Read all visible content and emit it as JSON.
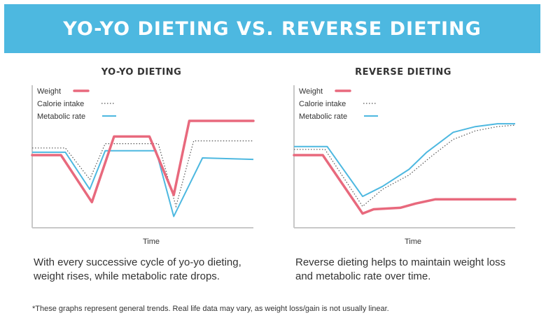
{
  "banner": {
    "title": "YO-YO DIETING VS. REVERSE DIETING",
    "color": "#4db8e0"
  },
  "colors": {
    "weight": "#e8697d",
    "calorie": "#555555",
    "metabolic": "#4db8e0"
  },
  "left": {
    "caption_line1": "With every successive cycle of yo-yo dieting,",
    "caption_line2": "weight rises, while metabolic rate drops."
  },
  "right": {
    "caption_line1": "Reverse dieting helps to maintain weight loss",
    "caption_line2": "and metabolic rate over time."
  },
  "footnote": "*These graphs represent general trends. Real life data may vary, as weight loss/gain is not usually linear.",
  "chart_data": [
    {
      "type": "line",
      "title": "YO-YO DIETING",
      "xlabel": "Time",
      "ylabel": "",
      "ylim": [
        0,
        100
      ],
      "xlim": [
        0,
        100
      ],
      "legend_position": "top-left",
      "series": [
        {
          "name": "Weight",
          "style": "thick",
          "points": [
            [
              0,
              51
            ],
            [
              13,
              51
            ],
            [
              27,
              18
            ],
            [
              37,
              64
            ],
            [
              53,
              64
            ],
            [
              64,
              23
            ],
            [
              71,
              75
            ],
            [
              100,
              75
            ]
          ]
        },
        {
          "name": "Calorie intake",
          "style": "dotted",
          "points": [
            [
              0,
              56
            ],
            [
              15,
              56
            ],
            [
              26,
              34
            ],
            [
              33,
              59
            ],
            [
              57,
              59
            ],
            [
              65,
              15
            ],
            [
              73,
              61
            ],
            [
              100,
              61
            ]
          ]
        },
        {
          "name": "Metabolic rate",
          "style": "line",
          "points": [
            [
              0,
              53
            ],
            [
              15,
              53
            ],
            [
              26,
              27
            ],
            [
              33,
              54
            ],
            [
              56,
              54
            ],
            [
              64,
              8
            ],
            [
              77,
              49
            ],
            [
              100,
              48
            ]
          ]
        }
      ]
    },
    {
      "type": "line",
      "title": "REVERSE DIETING",
      "xlabel": "Time",
      "ylabel": "",
      "ylim": [
        0,
        100
      ],
      "xlim": [
        0,
        100
      ],
      "legend_position": "top-left",
      "series": [
        {
          "name": "Weight",
          "style": "thick",
          "points": [
            [
              0,
              51
            ],
            [
              13,
              51
            ],
            [
              31,
              10
            ],
            [
              36,
              13
            ],
            [
              48,
              14
            ],
            [
              55,
              17
            ],
            [
              64,
              20
            ],
            [
              80,
              20
            ],
            [
              100,
              20
            ]
          ]
        },
        {
          "name": "Calorie intake",
          "style": "dotted",
          "points": [
            [
              0,
              55
            ],
            [
              14,
              55
            ],
            [
              31,
              15
            ],
            [
              40,
              27
            ],
            [
              52,
              37
            ],
            [
              62,
              50
            ],
            [
              72,
              62
            ],
            [
              82,
              68
            ],
            [
              92,
              71
            ],
            [
              100,
              72
            ]
          ]
        },
        {
          "name": "Metabolic rate",
          "style": "line",
          "points": [
            [
              0,
              57
            ],
            [
              15,
              57
            ],
            [
              31,
              22
            ],
            [
              40,
              29
            ],
            [
              52,
              41
            ],
            [
              60,
              53
            ],
            [
              72,
              67
            ],
            [
              82,
              71
            ],
            [
              92,
              73
            ],
            [
              100,
              73
            ]
          ]
        }
      ]
    }
  ]
}
